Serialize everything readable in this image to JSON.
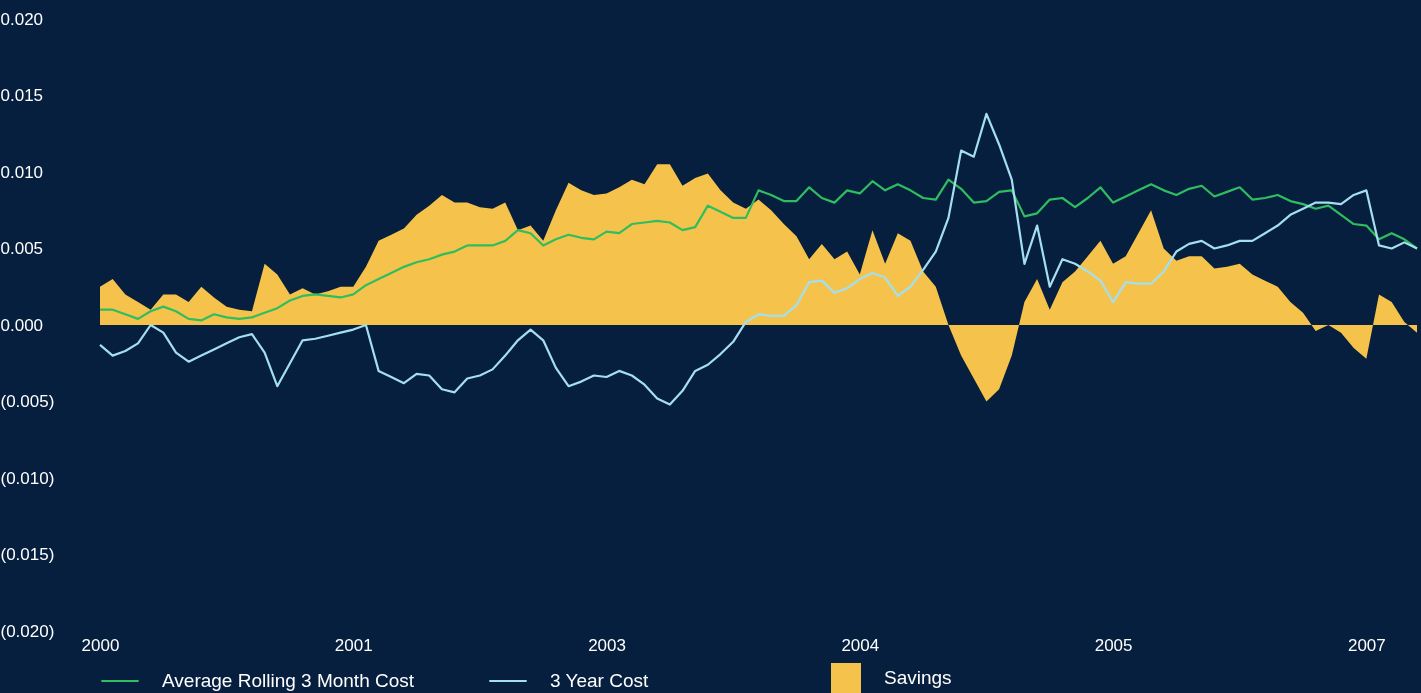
{
  "chart_data": {
    "type": "line",
    "categories": [
      "2000",
      null,
      null,
      null,
      null,
      null,
      null,
      null,
      null,
      null,
      null,
      null,
      null,
      null,
      null,
      null,
      null,
      null,
      null,
      null,
      "2001",
      null,
      null,
      null,
      null,
      null,
      null,
      null,
      null,
      null,
      null,
      null,
      null,
      null,
      null,
      null,
      null,
      null,
      null,
      null,
      "2003",
      null,
      null,
      null,
      null,
      null,
      null,
      null,
      null,
      null,
      null,
      null,
      null,
      null,
      null,
      null,
      null,
      null,
      null,
      null,
      "2004",
      null,
      null,
      null,
      null,
      null,
      null,
      null,
      null,
      null,
      null,
      null,
      null,
      null,
      null,
      null,
      null,
      null,
      null,
      null,
      "2005",
      null,
      null,
      null,
      null,
      null,
      null,
      null,
      null,
      null,
      null,
      null,
      null,
      null,
      null,
      null,
      null,
      null,
      null,
      null,
      "2007",
      null,
      null,
      null,
      null
    ],
    "series": [
      {
        "name": "Savings",
        "type": "area",
        "color": "#f5c34b",
        "values": [
          0.0025,
          0.003,
          0.002,
          0.0015,
          0.001,
          0.002,
          0.002,
          0.0015,
          0.0025,
          0.0018,
          0.0012,
          0.001,
          0.0009,
          0.004,
          0.0033,
          0.002,
          0.0024,
          0.002,
          0.0022,
          0.0025,
          0.0025,
          0.0038,
          0.0055,
          0.0059,
          0.0063,
          0.0072,
          0.0078,
          0.0085,
          0.008,
          0.008,
          0.0077,
          0.0076,
          0.008,
          0.0062,
          0.0065,
          0.0055,
          0.0075,
          0.0093,
          0.0088,
          0.0085,
          0.0086,
          0.009,
          0.0095,
          0.0092,
          0.0105,
          0.0105,
          0.0091,
          0.0096,
          0.0099,
          0.0088,
          0.008,
          0.0076,
          0.0082,
          0.0075,
          0.0066,
          0.0058,
          0.0043,
          0.0053,
          0.0043,
          0.0048,
          0.0033,
          0.0062,
          0.004,
          0.006,
          0.0055,
          0.0035,
          0.0025,
          0.0,
          -0.002,
          -0.0035,
          -0.005,
          -0.0042,
          -0.002,
          0.0015,
          0.003,
          0.001,
          0.0028,
          0.0035,
          0.0045,
          0.0055,
          0.004,
          0.0045,
          0.006,
          0.0075,
          0.005,
          0.0042,
          0.0045,
          0.0045,
          0.0037,
          0.0038,
          0.004,
          0.0033,
          0.0029,
          0.0025,
          0.0015,
          0.0008,
          -0.0004,
          0.0,
          -0.0005,
          -0.0015,
          -0.0022,
          0.002,
          0.0015,
          0.0002,
          -0.0005
        ]
      },
      {
        "name": "Average Rolling 3 Month Cost",
        "color": "#2ebd5f",
        "values": [
          0.001,
          0.001,
          0.0007,
          0.0004,
          0.0009,
          0.0012,
          0.0009,
          0.0004,
          0.0003,
          0.0007,
          0.0005,
          0.0004,
          0.0005,
          0.0008,
          0.0011,
          0.0016,
          0.0019,
          0.002,
          0.0019,
          0.0018,
          0.002,
          0.0026,
          0.003,
          0.0034,
          0.0038,
          0.0041,
          0.0043,
          0.0046,
          0.0048,
          0.0052,
          0.0052,
          0.0052,
          0.0055,
          0.0062,
          0.006,
          0.0052,
          0.0056,
          0.0059,
          0.0057,
          0.0056,
          0.0061,
          0.006,
          0.0066,
          0.0067,
          0.0068,
          0.0067,
          0.0062,
          0.0064,
          0.0078,
          0.0074,
          0.007,
          0.007,
          0.0088,
          0.0085,
          0.0081,
          0.0081,
          0.009,
          0.0083,
          0.008,
          0.0088,
          0.0086,
          0.0094,
          0.0088,
          0.0092,
          0.0088,
          0.0083,
          0.0082,
          0.0095,
          0.0089,
          0.008,
          0.0081,
          0.0087,
          0.0088,
          0.0071,
          0.0073,
          0.0082,
          0.0083,
          0.0077,
          0.0083,
          0.009,
          0.008,
          0.0084,
          0.0088,
          0.0092,
          0.0088,
          0.0085,
          0.0089,
          0.0091,
          0.0084,
          0.0087,
          0.009,
          0.0082,
          0.0083,
          0.0085,
          0.0081,
          0.0079,
          0.0076,
          0.0078,
          0.0072,
          0.0066,
          0.0065,
          0.0056,
          0.006,
          0.0056,
          0.005
        ]
      },
      {
        "name": "3 Year Cost",
        "color": "#a4dff0",
        "values": [
          -0.0013,
          -0.002,
          -0.0017,
          -0.0012,
          0.0,
          -0.0005,
          -0.0018,
          -0.0024,
          -0.002,
          -0.0016,
          -0.0012,
          -0.0008,
          -0.0006,
          -0.0018,
          -0.004,
          -0.0025,
          -0.001,
          -0.0009,
          -0.0007,
          -0.0005,
          -0.0003,
          0.0,
          -0.003,
          -0.0034,
          -0.0038,
          -0.0032,
          -0.0033,
          -0.0042,
          -0.0044,
          -0.0035,
          -0.0033,
          -0.0029,
          -0.002,
          -0.001,
          -0.0003,
          -0.001,
          -0.0028,
          -0.004,
          -0.0037,
          -0.0033,
          -0.0034,
          -0.003,
          -0.0033,
          -0.0039,
          -0.0048,
          -0.0052,
          -0.0043,
          -0.003,
          -0.0026,
          -0.0019,
          -0.0011,
          0.0002,
          0.0007,
          0.0006,
          0.0006,
          0.0013,
          0.0028,
          0.0029,
          0.0021,
          0.0024,
          0.003,
          0.0034,
          0.0031,
          0.0019,
          0.0025,
          0.0036,
          0.0048,
          0.007,
          0.0114,
          0.011,
          0.0138,
          0.0118,
          0.0095,
          0.004,
          0.0065,
          0.0025,
          0.0043,
          0.004,
          0.0035,
          0.0029,
          0.0015,
          0.0028,
          0.0027,
          0.0027,
          0.0035,
          0.0048,
          0.0053,
          0.0055,
          0.005,
          0.0052,
          0.0055,
          0.0055,
          0.006,
          0.0065,
          0.0072,
          0.0076,
          0.008,
          0.008,
          0.0079,
          0.0085,
          0.0088,
          0.0052,
          0.005,
          0.0054,
          0.005
        ]
      }
    ],
    "ylim": [
      -0.02,
      0.02
    ],
    "yticks": [
      {
        "value": 0.02,
        "label": "0.020"
      },
      {
        "value": 0.015,
        "label": "0.015"
      },
      {
        "value": 0.01,
        "label": "0.010"
      },
      {
        "value": 0.005,
        "label": "0.005"
      },
      {
        "value": 0,
        "label": "0.000"
      },
      {
        "value": -0.005,
        "label": "(0.005)"
      },
      {
        "value": -0.01,
        "label": "(0.010)"
      },
      {
        "value": -0.015,
        "label": "(0.015)"
      },
      {
        "value": -0.02,
        "label": "(0.020)"
      }
    ],
    "grid": false,
    "legend": "bottom"
  }
}
